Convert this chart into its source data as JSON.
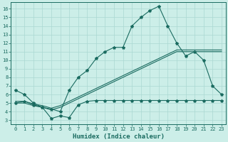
{
  "title": "",
  "xlabel": "Humidex (Indice chaleur)",
  "ylabel": "",
  "background_color": "#cceee8",
  "grid_color": "#aad8d2",
  "line_color": "#1a6b60",
  "xlim": [
    -0.5,
    23.5
  ],
  "ylim": [
    2.5,
    16.8
  ],
  "xticks": [
    0,
    1,
    2,
    3,
    4,
    5,
    6,
    7,
    8,
    9,
    10,
    11,
    12,
    13,
    14,
    15,
    16,
    17,
    18,
    19,
    20,
    21,
    22,
    23
  ],
  "yticks": [
    3,
    4,
    5,
    6,
    7,
    8,
    9,
    10,
    11,
    12,
    13,
    14,
    15,
    16
  ],
  "curve1_x": [
    0,
    1,
    2,
    3,
    4,
    5,
    6,
    7,
    8,
    9,
    10,
    11,
    12,
    13,
    14,
    15,
    16,
    17,
    18,
    19,
    20,
    21,
    22,
    23
  ],
  "curve1_y": [
    6.5,
    6.0,
    5.0,
    4.5,
    4.3,
    4.0,
    6.5,
    8.0,
    8.8,
    10.2,
    11.0,
    11.5,
    11.5,
    14.0,
    15.0,
    15.8,
    16.3,
    14.0,
    12.0,
    10.5,
    11.0,
    10.0,
    7.0,
    6.0
  ],
  "curve2_x": [
    0,
    1,
    2,
    3,
    4,
    5,
    6,
    7,
    8,
    9,
    10,
    11,
    12,
    13,
    14,
    15,
    16,
    17,
    18,
    19,
    20,
    21,
    22,
    23
  ],
  "curve2_y": [
    5.0,
    5.2,
    4.8,
    4.5,
    3.2,
    3.5,
    3.3,
    4.8,
    5.2,
    5.3,
    5.3,
    5.3,
    5.3,
    5.3,
    5.3,
    5.3,
    5.3,
    5.3,
    5.3,
    5.3,
    5.3,
    5.3,
    5.3,
    5.3
  ],
  "curve3_x": [
    0,
    1,
    2,
    3,
    4,
    5,
    6,
    7,
    8,
    9,
    10,
    11,
    12,
    13,
    14,
    15,
    16,
    17,
    18,
    19,
    20,
    21,
    22,
    23
  ],
  "curve3_y": [
    5.0,
    5.0,
    4.7,
    4.5,
    4.2,
    4.5,
    5.0,
    5.5,
    6.0,
    6.5,
    7.0,
    7.5,
    8.0,
    8.5,
    9.0,
    9.5,
    10.0,
    10.5,
    11.0,
    11.0,
    11.0,
    11.0,
    11.0,
    11.0
  ],
  "curve4_x": [
    0,
    1,
    2,
    3,
    4,
    5,
    6,
    7,
    8,
    9,
    10,
    11,
    12,
    13,
    14,
    15,
    16,
    17,
    18,
    19,
    20,
    21,
    22,
    23
  ],
  "curve4_y": [
    5.2,
    5.2,
    4.9,
    4.7,
    4.4,
    4.7,
    5.2,
    5.7,
    6.2,
    6.7,
    7.2,
    7.7,
    8.2,
    8.7,
    9.2,
    9.7,
    10.2,
    10.7,
    11.2,
    11.2,
    11.2,
    11.2,
    11.2,
    11.2
  ],
  "marker_style": "*",
  "marker_size": 3,
  "line_width": 0.8
}
